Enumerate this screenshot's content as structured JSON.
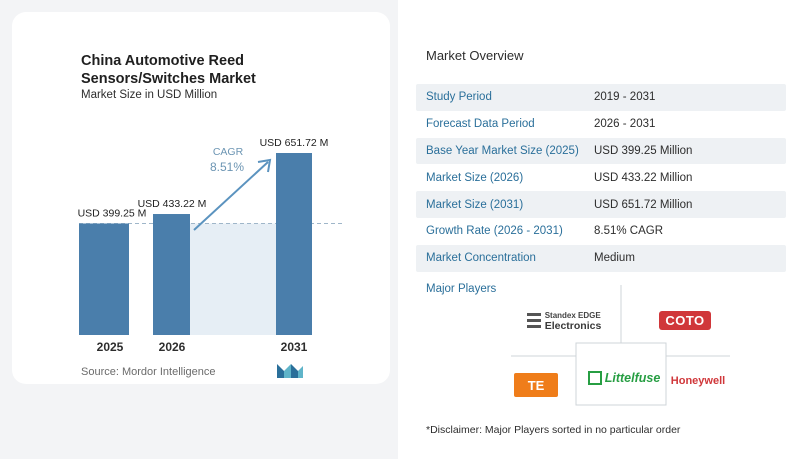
{
  "chart_data": {
    "type": "bar",
    "title": "China Automotive Reed Sensors/Switches Market",
    "subtitle": "Market Size in USD Million",
    "categories": [
      "2025",
      "2026",
      "2031"
    ],
    "values": [
      399.25,
      433.22,
      651.72
    ],
    "value_labels": [
      "USD 399.25 M",
      "USD 433.22 M",
      "USD 651.72 M"
    ],
    "cagr_label": "CAGR",
    "cagr_value": "8.51%",
    "colors": {
      "bar": "#4a7eab",
      "band": "#e6eef5",
      "arrow": "#5b93bf",
      "cagr": "#6c95b3"
    }
  },
  "source": "Source:  Mordor Intelligence",
  "overview": {
    "title": "Market Overview",
    "rows": [
      {
        "key": "Study Period",
        "value": "2019 - 2031"
      },
      {
        "key": "Forecast Data Period",
        "value": "2026 - 2031"
      },
      {
        "key": "Base Year Market Size (2025)",
        "value": "USD 399.25 Million"
      },
      {
        "key": "Market Size (2026)",
        "value": "USD 433.22 Million"
      },
      {
        "key": "Market Size (2031)",
        "value": "USD 651.72 Million"
      },
      {
        "key": "Growth Rate (2026 - 2031)",
        "value": "8.51% CAGR"
      },
      {
        "key": "Market Concentration",
        "value": "Medium"
      }
    ]
  },
  "players": {
    "title": "Major Players",
    "standex_line1": "Standex EDGE",
    "standex_line2": "Electronics",
    "coto": "COTO",
    "te": "TE",
    "littelfuse": "Littelfuse",
    "honeywell": "Honeywell"
  },
  "disclaimer": "*Disclaimer: Major Players sorted in no particular order"
}
